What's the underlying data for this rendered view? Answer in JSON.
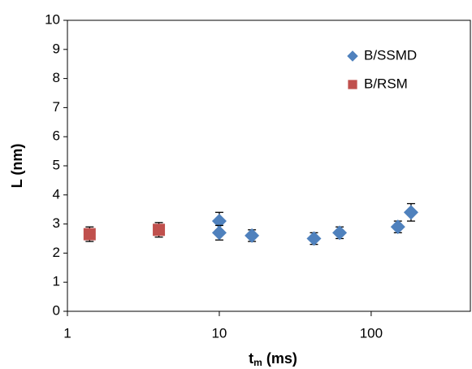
{
  "chart_data": {
    "type": "scatter",
    "xlabel": {
      "main": "t",
      "sub": "m",
      "rest": " (ms)"
    },
    "ylabel": "L (nm)",
    "xlog": true,
    "xlim": [
      1,
      450
    ],
    "xticks": [
      1,
      10,
      100
    ],
    "ylim": [
      0,
      10
    ],
    "yticks": [
      0,
      1,
      2,
      3,
      4,
      5,
      6,
      7,
      8,
      9,
      10
    ],
    "legend": "upper right",
    "series": [
      {
        "name": "B/SSMD",
        "color": "#4f81bd",
        "marker": "diamond",
        "x": [
          10,
          10,
          16.4,
          42,
          62,
          150,
          183
        ],
        "values": [
          3.1,
          2.7,
          2.6,
          2.5,
          2.7,
          2.9,
          3.4
        ],
        "errors": [
          0.3,
          0.25,
          0.2,
          0.2,
          0.2,
          0.2,
          0.3
        ]
      },
      {
        "name": "B/RSM",
        "color": "#c0504d",
        "marker": "square",
        "x": [
          1.4,
          4
        ],
        "values": [
          2.65,
          2.8
        ],
        "errors": [
          0.25,
          0.25
        ]
      }
    ]
  }
}
